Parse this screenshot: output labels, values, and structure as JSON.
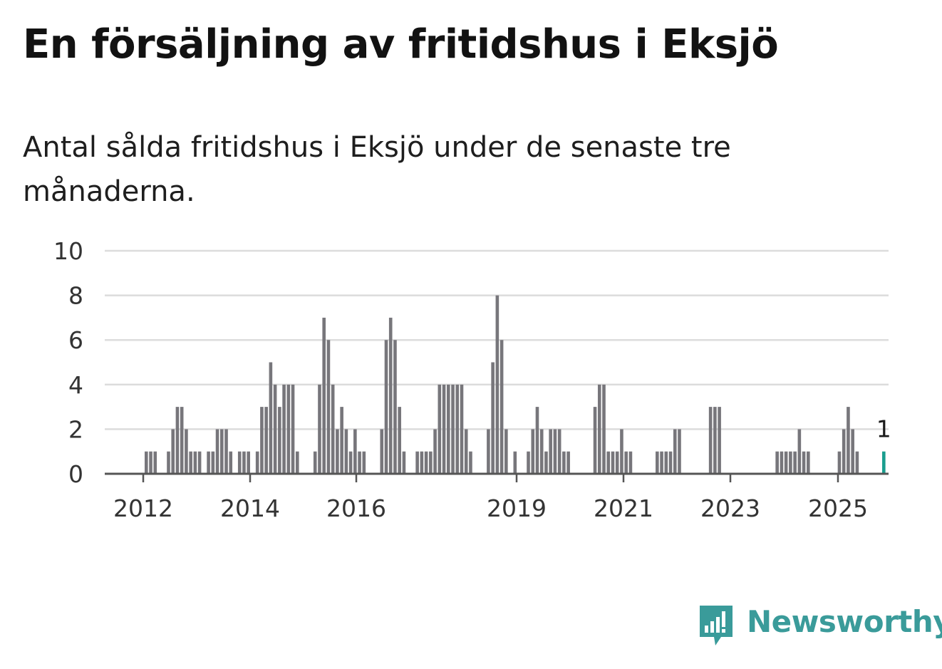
{
  "header": {
    "title": "En försäljning av fritidshus i Eksjö",
    "subtitle": "Antal sålda fritidshus i Eksjö under de senaste tre månaderna."
  },
  "brand": {
    "name": "Newsworthy",
    "color": "#3a9b9a",
    "icon": "newsworthy-logo-icon"
  },
  "chart_data": {
    "type": "bar",
    "title": "",
    "xlabel": "",
    "ylabel": "",
    "ylim": [
      0,
      10
    ],
    "y_ticks": [
      0,
      2,
      4,
      6,
      8,
      10
    ],
    "x_tick_labels": [
      "2012",
      "2014",
      "2016",
      "2019",
      "2021",
      "2023",
      "2025"
    ],
    "grid": true,
    "bar_color": "#77767b",
    "highlight_color": "#1a9e8f",
    "highlight_label": "1",
    "series": [
      {
        "values": [
          1,
          1,
          1,
          0,
          0,
          1,
          2,
          3,
          3,
          2,
          1,
          1,
          1,
          0,
          1,
          1,
          2,
          2,
          2,
          1,
          0,
          1,
          1,
          1,
          0,
          1,
          3,
          3,
          5,
          4,
          3,
          4,
          4,
          4,
          1,
          0,
          0,
          0,
          1,
          4,
          7,
          6,
          4,
          2,
          3,
          2,
          1,
          2,
          1,
          1,
          0,
          0,
          0,
          2,
          6,
          7,
          6,
          3,
          1,
          0,
          0,
          1,
          1,
          1,
          1,
          2,
          4,
          4,
          4,
          4,
          4,
          4,
          2,
          1,
          0,
          0,
          0,
          2,
          5,
          8,
          6,
          2,
          0,
          1,
          0,
          0,
          1,
          2,
          3,
          2,
          1,
          2,
          2,
          2,
          1,
          1,
          0,
          0,
          0,
          0,
          0,
          3,
          4,
          4,
          1,
          1,
          1,
          2,
          1,
          1,
          0,
          0,
          0,
          0,
          0,
          1,
          1,
          1,
          1,
          2,
          2,
          0,
          0,
          0,
          0,
          0,
          0,
          3,
          3,
          3,
          0,
          0,
          0,
          0,
          0,
          0,
          0,
          0,
          0,
          0,
          0,
          0,
          1,
          1,
          1,
          1,
          1,
          2,
          1,
          1,
          0,
          0,
          0,
          0,
          0,
          0,
          1,
          2,
          3,
          2,
          1,
          0,
          0,
          0,
          0,
          0,
          1
        ]
      }
    ]
  }
}
